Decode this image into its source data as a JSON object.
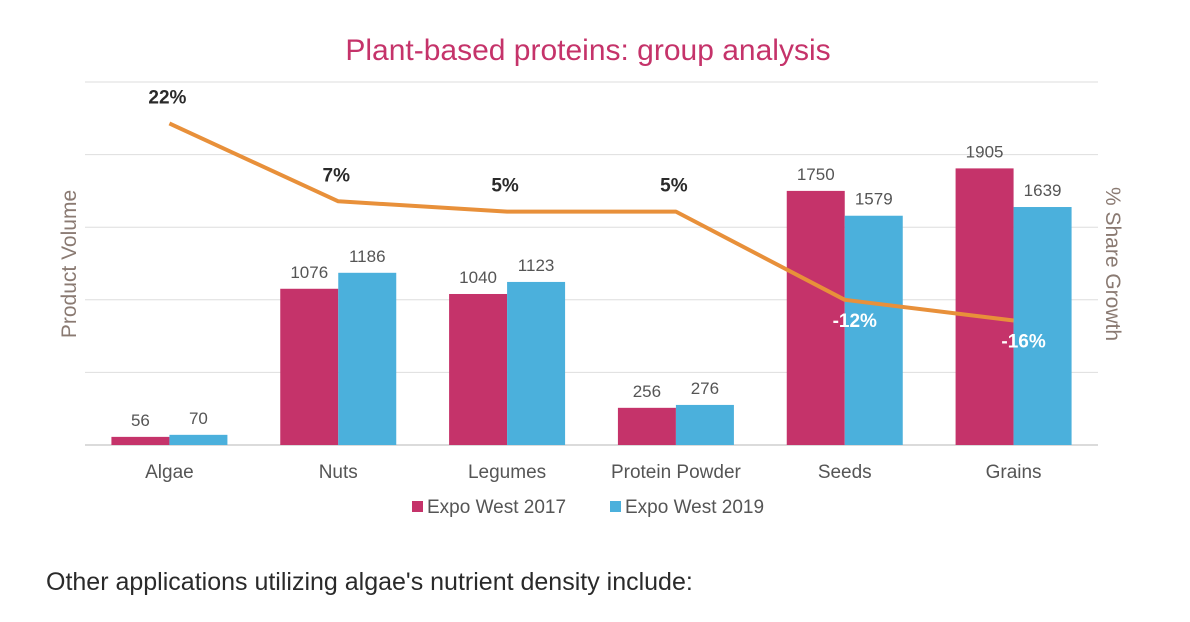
{
  "chart_data": {
    "type": "bar",
    "title": "Plant-based proteins: group analysis",
    "ylabel": "Product Volume",
    "y2label": "% Share Growth",
    "categories": [
      "Algae",
      "Nuts",
      "Legumes",
      "Protein Powder",
      "Seeds",
      "Grains"
    ],
    "series": [
      {
        "name": "Expo West 2017",
        "color": "#c5336a",
        "values": [
          56,
          1076,
          1040,
          256,
          1750,
          1905
        ],
        "labels": [
          "56",
          "1076",
          "1040",
          "256",
          "1750",
          "1905"
        ]
      },
      {
        "name": "Expo West 2019",
        "color": "#4bb0dc",
        "values": [
          70,
          1186,
          1123,
          276,
          1579,
          1639
        ],
        "labels": [
          "70",
          "1186",
          "1123",
          "276",
          "1579",
          "1639"
        ]
      }
    ],
    "growth": {
      "color": "#e8903a",
      "values": [
        22,
        7,
        5,
        5,
        -12,
        -16
      ],
      "labels": [
        "22%",
        "7%",
        "5%",
        "5%",
        "-12%",
        "-16%"
      ]
    },
    "ylim": [
      0,
      2500
    ],
    "y2lim": [
      -40,
      30
    ],
    "grid": true,
    "legend": "bottom",
    "colors": {
      "title": "#c5336a",
      "axis_label": "#8a7a72",
      "tick": "#555555",
      "grid": "#dedede"
    }
  },
  "caption": "Other applications utilizing algae's nutrient density include:"
}
